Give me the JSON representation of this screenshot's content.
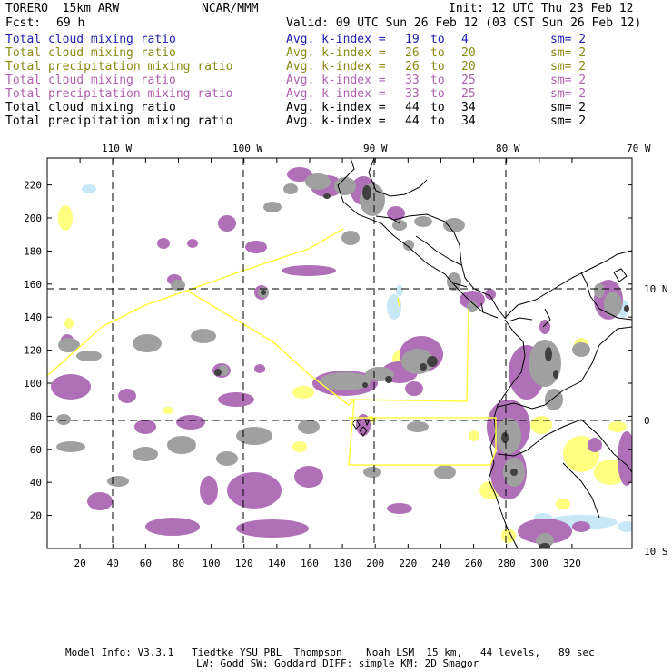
{
  "header": {
    "model": "TORERO  15km ARW",
    "center": "NCAR/MMM",
    "init": "Init: 12 UTC Thu 23 Feb 12",
    "fcst_label": "Fcst:",
    "fcst_value": "69 h",
    "valid": "Valid: 09 UTC Sun 26 Feb 12 (03 CST Sun 26 Feb 12)"
  },
  "legend": [
    {
      "field": "Total cloud mixing ratio",
      "kindex": "Avg. k-index = ",
      "from": "19",
      "to_word": "to",
      "to": "4",
      "sm": "sm= 2",
      "color": "#2020b0"
    },
    {
      "field": "Total cloud mixing ratio",
      "kindex": "Avg. k-index = ",
      "from": "26",
      "to_word": "to",
      "to": "20",
      "sm": "sm= 2",
      "color": "#8a8a14"
    },
    {
      "field": "Total precipitation mixing ratio",
      "kindex": "Avg. k-index = ",
      "from": "26",
      "to_word": "to",
      "to": "20",
      "sm": "sm= 2",
      "color": "#8a8a14"
    },
    {
      "field": "Total cloud mixing ratio",
      "kindex": "Avg. k-index = ",
      "from": "33",
      "to_word": "to",
      "to": "25",
      "sm": "sm= 2",
      "color": "#b060b0"
    },
    {
      "field": "Total precipitation mixing ratio",
      "kindex": "Avg. k-index = ",
      "from": "33",
      "to_word": "to",
      "to": "25",
      "sm": "sm= 2",
      "color": "#b060b0"
    },
    {
      "field": "Total cloud mixing ratio",
      "kindex": "Avg. k-index = ",
      "from": "44",
      "to_word": "to",
      "to": "34",
      "sm": "sm= 2",
      "color": "#000000"
    },
    {
      "field": "Total precipitation mixing ratio",
      "kindex": "Avg. k-index = ",
      "from": "44",
      "to_word": "to",
      "to": "34",
      "sm": "sm= 2",
      "color": "#000000"
    }
  ],
  "map": {
    "longitude_labels": [
      "110 W",
      "100 W",
      "90 W",
      "80 W",
      "70 W"
    ],
    "latitude_labels": [
      "10 N",
      "0",
      "10 S"
    ],
    "grid_x_ticks": [
      "20",
      "40",
      "60",
      "80",
      "100",
      "120",
      "140",
      "160",
      "180",
      "200",
      "220",
      "240",
      "260",
      "280",
      "300",
      "320"
    ],
    "grid_y_ticks": [
      "220",
      "200",
      "180",
      "160",
      "140",
      "120",
      "100",
      "80",
      "60",
      "40",
      "20"
    ],
    "colors": {
      "cloud_light": "#c8e8f8",
      "cloud_yellow": "#ffff80",
      "purple": "#b070b8",
      "gray": "#a0a0a0",
      "dark": "#404040",
      "domain_outline": "#ffff40"
    }
  },
  "footer": {
    "line1": "Model Info: V3.3.1   Tiedtke YSU PBL  Thompson    Noah LSM  15 km,   44 levels,   89 sec",
    "line2": "LW: Godd SW: Goddard DIFF: simple KM: 2D Smagor"
  }
}
